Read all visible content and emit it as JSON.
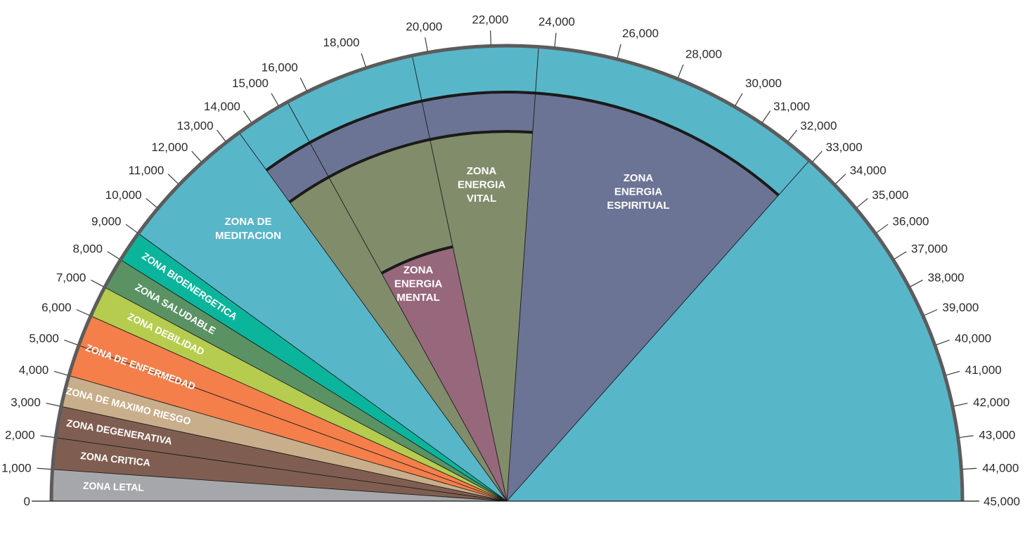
{
  "scale": {
    "min": 0,
    "max": 45000,
    "tick_values": [
      0,
      1000,
      2000,
      3000,
      4000,
      5000,
      6000,
      7000,
      8000,
      9000,
      10000,
      11000,
      12000,
      13000,
      14000,
      15000,
      16000,
      18000,
      20000,
      22000,
      24000,
      26000,
      28000,
      30000,
      31000,
      32000,
      33000,
      34000,
      35000,
      36000,
      37000,
      38000,
      39000,
      40000,
      41000,
      42000,
      43000,
      44000,
      45000
    ],
    "tick_labels": [
      "0",
      "1,000",
      "2,000",
      "3,000",
      "4,000",
      "5,000",
      "6,000",
      "7,000",
      "8,000",
      "9,000",
      "10,000",
      "11,000",
      "12,000",
      "13,000",
      "14,000",
      "15,000",
      "16,000",
      "18,000",
      "20,000",
      "22,000",
      "24,000",
      "26,000",
      "28,000",
      "30,000",
      "31,000",
      "32,000",
      "33,000",
      "34,000",
      "35,000",
      "36,000",
      "37,000",
      "38,000",
      "39,000",
      "40,000",
      "41,000",
      "42,000",
      "43,000",
      "44,000",
      "45,000"
    ]
  },
  "outer_zones": [
    {
      "name": "ZONA LETAL",
      "from": 0,
      "to": 1000,
      "color": "#a6a7ab"
    },
    {
      "name": "ZONA CRITICA",
      "from": 1000,
      "to": 2000,
      "color": "#7f5e51"
    },
    {
      "name": "ZONA DEGENERATIVA",
      "from": 2000,
      "to": 3000,
      "color": "#7f5e51"
    },
    {
      "name": "ZONA DE MAXIMO RIESGO",
      "from": 3000,
      "to": 4000,
      "color": "#c8ae8a"
    },
    {
      "name": "ZONA DE ENFERMEDAD",
      "from": 4000,
      "to": 6000,
      "color": "#f47f4b"
    },
    {
      "name": "ZONA DEBILIDAD",
      "from": 6000,
      "to": 7000,
      "color": "#b5cc4e"
    },
    {
      "name": "ZONA SALUDABLE",
      "from": 7000,
      "to": 8000,
      "color": "#5a9264"
    },
    {
      "name": "ZONA BIOENERGETICA",
      "from": 8000,
      "to": 9000,
      "color": "#0ab59c"
    },
    {
      "name": "ZONA DE MEDITACION",
      "from": 9000,
      "to": 45000,
      "color": "#58b6c9"
    }
  ],
  "inner_zones": [
    {
      "name": "ZONA ENERGIA ESPIRITUAL",
      "lines": [
        "ZONA",
        "ENERGIA",
        "ESPIRITUAL"
      ],
      "from": 13500,
      "to": 32900,
      "color": "#6c7495"
    },
    {
      "name": "ZONA ENERGIA VITAL",
      "lines": [
        "ZONA",
        "ENERGIA",
        "VITAL"
      ],
      "from": 13500,
      "to": 23500,
      "color": "#818c6b"
    },
    {
      "name": "ZONA ENERGIA MENTAL",
      "lines": [
        "ZONA",
        "ENERGIA",
        "MENTAL"
      ],
      "from": 15300,
      "to": 19500,
      "color": "#97687c"
    }
  ],
  "meditacion_label": [
    "ZONA DE",
    "MEDITACION"
  ],
  "colors": {
    "rim": "#5c5c5c",
    "tick": "#3a3a3a",
    "text": "#2a2a2a",
    "label": "#ffffff",
    "divider": "#1a1a1a"
  }
}
